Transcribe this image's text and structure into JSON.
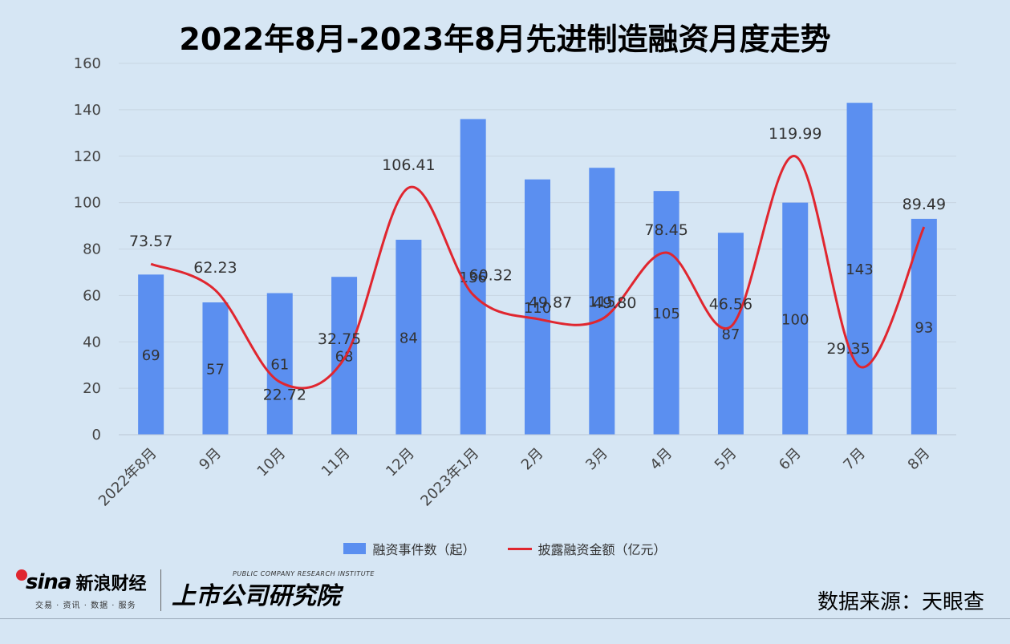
{
  "chart_data": {
    "type": "bar+line",
    "title": "2022年8月-2023年8月先进制造融资月度走势",
    "categories": [
      "2022年8月",
      "9月",
      "10月",
      "11月",
      "12月",
      "2023年1月",
      "2月",
      "3月",
      "4月",
      "5月",
      "6月",
      "7月",
      "8月"
    ],
    "series": [
      {
        "name": "融资事件数（起）",
        "type": "bar",
        "color": "#5b8ff0",
        "values": [
          69,
          57,
          61,
          68,
          84,
          136,
          110,
          115,
          105,
          87,
          100,
          143,
          93
        ]
      },
      {
        "name": "披露融资金额（亿元）",
        "type": "line",
        "color": "#e0262f",
        "values": [
          73.57,
          62.23,
          22.72,
          32.75,
          106.41,
          60.32,
          49.87,
          49.8,
          78.45,
          46.56,
          119.99,
          29.35,
          89.49
        ],
        "labels": [
          "73.57",
          "62.23",
          "22.72",
          "32.75",
          "106.41",
          "60.32",
          "49.87",
          "49.80",
          "78.45",
          "46.56",
          "119.99",
          "29.35",
          "89.49"
        ]
      }
    ],
    "ylim": [
      0,
      160
    ],
    "yticks": [
      0,
      20,
      40,
      60,
      80,
      100,
      120,
      140,
      160
    ],
    "grid": true,
    "legend_position": "bottom",
    "xlabel": "",
    "ylabel": ""
  },
  "branding": {
    "sina_mark": "sina",
    "sina_name": "新浪财经",
    "sina_sub": "交易 · 资讯 · 数据 · 服务",
    "institute_name": "上市公司研究院",
    "institute_en": "PUBLIC COMPANY RESEARCH INSTITUTE"
  },
  "source": "数据来源：天眼查"
}
